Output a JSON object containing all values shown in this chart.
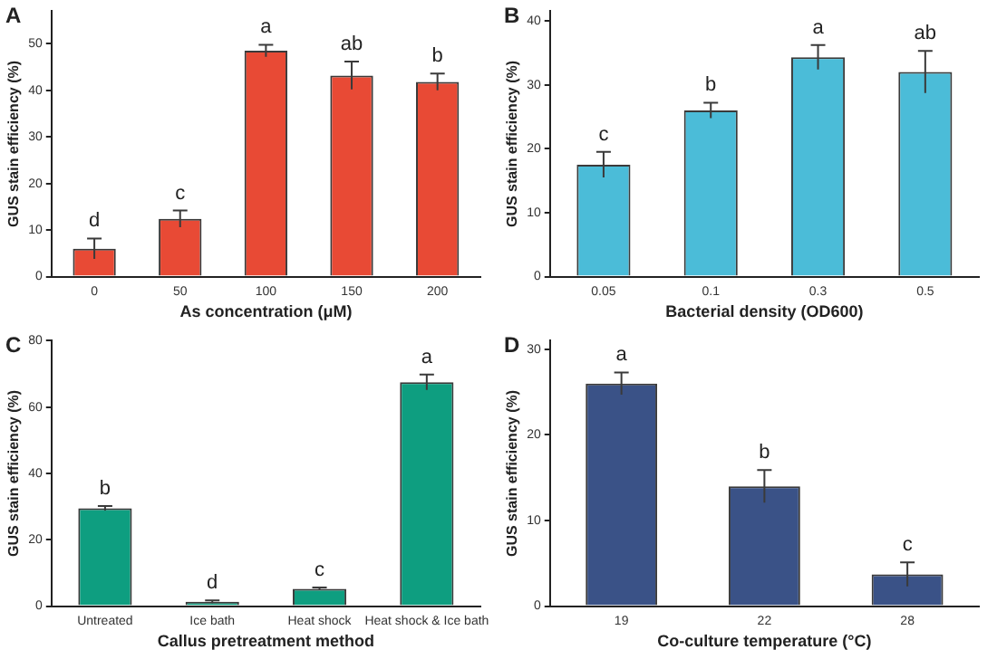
{
  "chart_data": [
    {
      "type": "bar",
      "title": "A",
      "xlabel": "As concentration (μM)",
      "ylabel": "GUS stain efficiency (%)",
      "categories": [
        "0",
        "50",
        "100",
        "150",
        "200"
      ],
      "values": [
        6,
        12.4,
        48.5,
        43.2,
        41.8
      ],
      "errors": [
        2.2,
        1.8,
        1.3,
        3,
        1.8
      ],
      "color": "#e84a35",
      "ylim": [
        0,
        57
      ],
      "yticks": [
        0,
        10,
        20,
        30,
        40,
        50
      ],
      "grid": false,
      "annotations": [
        {
          "text": "d",
          "x": "0",
          "y": 8.2
        },
        {
          "text": "c",
          "x": "50",
          "y": 14.2
        },
        {
          "text": "a",
          "x": "100",
          "y": 49.8
        },
        {
          "text": "ab",
          "x": "150",
          "y": 46.2
        },
        {
          "text": "b",
          "x": "200",
          "y": 43.6
        }
      ]
    },
    {
      "type": "bar",
      "title": "B",
      "xlabel": "Bacterial density (OD600)",
      "ylabel": "GUS stain efficiency (%)",
      "categories": [
        "0.05",
        "0.1",
        "0.3",
        "0.5"
      ],
      "values": [
        17.5,
        26,
        34.3,
        32
      ],
      "errors": [
        2,
        1.2,
        1.9,
        3.3
      ],
      "color": "#4bbcd8",
      "ylim": [
        0,
        41.5
      ],
      "yticks": [
        0,
        10,
        20,
        30,
        40
      ],
      "grid": false,
      "annotations": [
        {
          "text": "c",
          "x": "0.05",
          "y": 19.5
        },
        {
          "text": "b",
          "x": "0.1",
          "y": 27.2
        },
        {
          "text": "a",
          "x": "0.3",
          "y": 36.2
        },
        {
          "text": "ab",
          "x": "0.5",
          "y": 35.3
        }
      ]
    },
    {
      "type": "bar",
      "title": "C",
      "xlabel": "Callus pretreatment method",
      "ylabel": "GUS stain efficiency (%)",
      "categories": [
        "Untreated",
        "Ice bath",
        "Heat shock",
        "Heat shock & Ice bath"
      ],
      "values": [
        29.5,
        1.3,
        5.2,
        67.5
      ],
      "errors": [
        0.7,
        0.4,
        0.4,
        2.3
      ],
      "color": "#0e9e80",
      "ylim": [
        0,
        80
      ],
      "yticks": [
        0,
        20,
        40,
        60,
        80
      ],
      "grid": false,
      "annotations": [
        {
          "text": "b",
          "x": "Untreated",
          "y": 30.2
        },
        {
          "text": "d",
          "x": "Ice bath",
          "y": 1.7
        },
        {
          "text": "c",
          "x": "Heat shock",
          "y": 5.6
        },
        {
          "text": "a",
          "x": "Heat shock & Ice bath",
          "y": 69.8
        }
      ]
    },
    {
      "type": "bar",
      "title": "D",
      "xlabel": "Co-culture temperature (°C)",
      "ylabel": "GUS stain efficiency (%)",
      "categories": [
        "19",
        "22",
        "28"
      ],
      "values": [
        26,
        14,
        3.7
      ],
      "errors": [
        1.3,
        1.9,
        1.4
      ],
      "color": "#3a5287",
      "ylim": [
        0,
        31
      ],
      "yticks": [
        0,
        10,
        20,
        30
      ],
      "grid": false,
      "annotations": [
        {
          "text": "a",
          "x": "19",
          "y": 27.3
        },
        {
          "text": "b",
          "x": "22",
          "y": 15.9
        },
        {
          "text": "c",
          "x": "28",
          "y": 5.1
        }
      ]
    }
  ]
}
